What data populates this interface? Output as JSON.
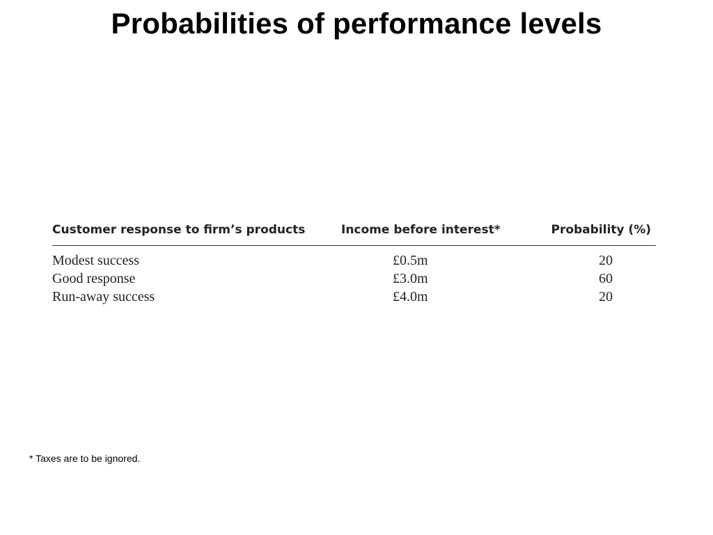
{
  "title": "Probabilities of performance levels",
  "table": {
    "headers": [
      "Customer response to firm’s products",
      "Income before interest*",
      "Probability (%)"
    ],
    "rows": [
      [
        "Modest success",
        "£0.5m",
        "20"
      ],
      [
        "Good response",
        "£3.0m",
        "60"
      ],
      [
        "Run-away success",
        "£4.0m",
        "20"
      ]
    ]
  },
  "footnote": "* Taxes are to be ignored."
}
